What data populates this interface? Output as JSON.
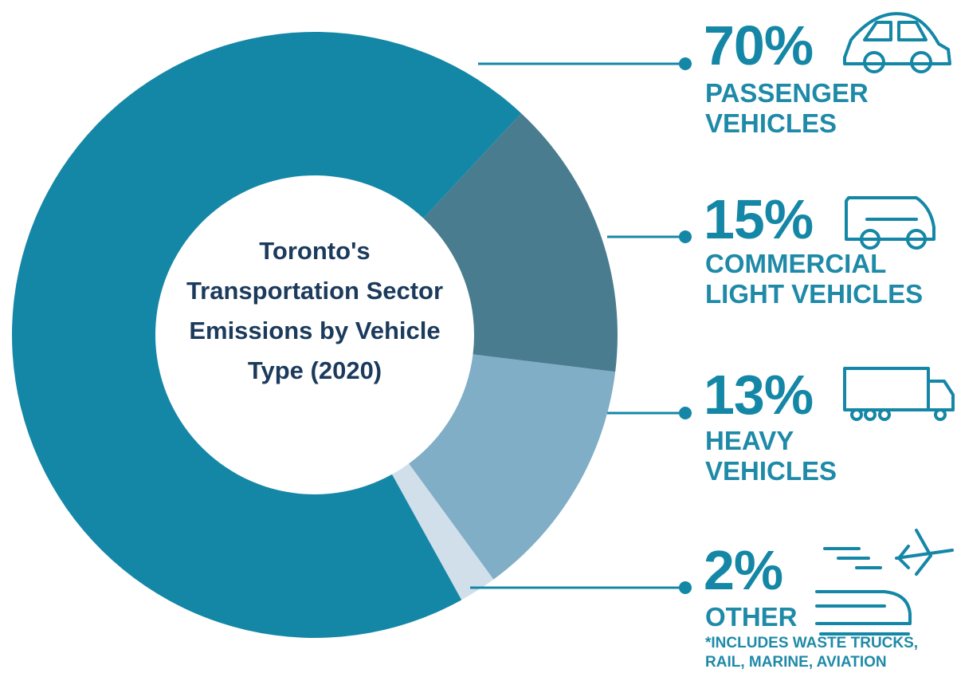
{
  "chart_data": {
    "type": "pie",
    "donut": true,
    "title": "Toronto's Transportation Sector Emissions by Vehicle Type (2020)",
    "categories": [
      "PASSENGER VEHICLES",
      "COMMERCIAL LIGHT VEHICLES",
      "HEAVY VEHICLES",
      "OTHER"
    ],
    "values": [
      70,
      15,
      13,
      2
    ],
    "value_labels": [
      "70%",
      "15%",
      "13%",
      "2%"
    ],
    "colors": [
      "#1587a6",
      "#4a7c8f",
      "#80aec6",
      "#d0dfea"
    ],
    "footnote": "*INCLUDES WASTE TRUCKS, RAIL, MARINE, AVIATION"
  }
}
